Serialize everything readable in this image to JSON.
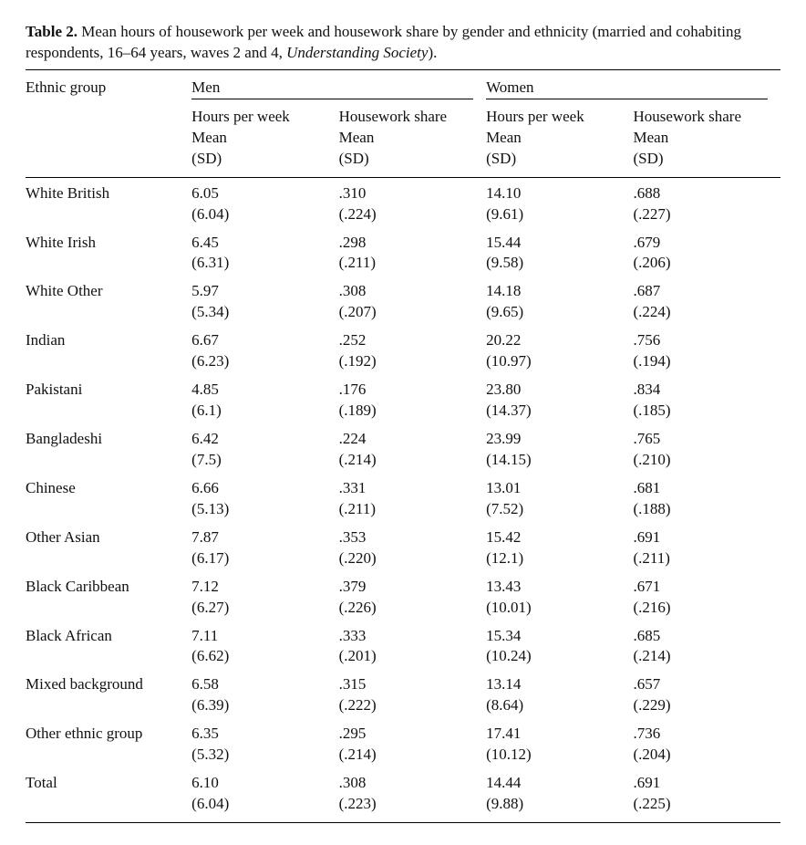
{
  "caption": {
    "label": "Table 2.",
    "text_a": "Mean hours of housework per week and housework share by gender and ethnicity (married and cohabiting respondents, 16–64 years, waves 2 and 4, ",
    "italic": "Understanding Society",
    "text_b": ")."
  },
  "columns": {
    "ethnic": "Ethnic group",
    "gender_men": "Men",
    "gender_women": "Women",
    "sub_hours_l1": "Hours per week",
    "sub_hours_l2": "Mean",
    "sub_hours_l3": "(SD)",
    "sub_share_l1": "Housework share",
    "sub_share_l2": "Mean",
    "sub_share_l3": "(SD)"
  },
  "rows": [
    {
      "name": "White British",
      "m_h": "6.05",
      "m_h_sd": "(6.04)",
      "m_s": ".310",
      "m_s_sd": "(.224)",
      "w_h": "14.10",
      "w_h_sd": "(9.61)",
      "w_s": ".688",
      "w_s_sd": "(.227)"
    },
    {
      "name": "White Irish",
      "m_h": "6.45",
      "m_h_sd": "(6.31)",
      "m_s": ".298",
      "m_s_sd": "(.211)",
      "w_h": "15.44",
      "w_h_sd": "(9.58)",
      "w_s": ".679",
      "w_s_sd": "(.206)"
    },
    {
      "name": "White Other",
      "m_h": "5.97",
      "m_h_sd": "(5.34)",
      "m_s": ".308",
      "m_s_sd": "(.207)",
      "w_h": "14.18",
      "w_h_sd": "(9.65)",
      "w_s": ".687",
      "w_s_sd": "(.224)"
    },
    {
      "name": "Indian",
      "m_h": "6.67",
      "m_h_sd": "(6.23)",
      "m_s": ".252",
      "m_s_sd": "(.192)",
      "w_h": "20.22",
      "w_h_sd": "(10.97)",
      "w_s": ".756",
      "w_s_sd": "(.194)"
    },
    {
      "name": "Pakistani",
      "m_h": "4.85",
      "m_h_sd": "(6.1)",
      "m_s": ".176",
      "m_s_sd": "(.189)",
      "w_h": "23.80",
      "w_h_sd": "(14.37)",
      "w_s": ".834",
      "w_s_sd": "(.185)"
    },
    {
      "name": "Bangladeshi",
      "m_h": "6.42",
      "m_h_sd": "(7.5)",
      "m_s": ".224",
      "m_s_sd": "(.214)",
      "w_h": "23.99",
      "w_h_sd": "(14.15)",
      "w_s": ".765",
      "w_s_sd": "(.210)"
    },
    {
      "name": "Chinese",
      "m_h": "6.66",
      "m_h_sd": "(5.13)",
      "m_s": ".331",
      "m_s_sd": "(.211)",
      "w_h": "13.01",
      "w_h_sd": "(7.52)",
      "w_s": ".681",
      "w_s_sd": "(.188)"
    },
    {
      "name": "Other Asian",
      "m_h": "7.87",
      "m_h_sd": "(6.17)",
      "m_s": ".353",
      "m_s_sd": "(.220)",
      "w_h": "15.42",
      "w_h_sd": "(12.1)",
      "w_s": ".691",
      "w_s_sd": "(.211)"
    },
    {
      "name": "Black Caribbean",
      "m_h": "7.12",
      "m_h_sd": "(6.27)",
      "m_s": ".379",
      "m_s_sd": "(.226)",
      "w_h": "13.43",
      "w_h_sd": "(10.01)",
      "w_s": ".671",
      "w_s_sd": "(.216)"
    },
    {
      "name": "Black African",
      "m_h": "7.11",
      "m_h_sd": "(6.62)",
      "m_s": ".333",
      "m_s_sd": "(.201)",
      "w_h": "15.34",
      "w_h_sd": "(10.24)",
      "w_s": ".685",
      "w_s_sd": "(.214)"
    },
    {
      "name": "Mixed background",
      "m_h": "6.58",
      "m_h_sd": "(6.39)",
      "m_s": ".315",
      "m_s_sd": "(.222)",
      "w_h": "13.14",
      "w_h_sd": "(8.64)",
      "w_s": ".657",
      "w_s_sd": "(.229)"
    },
    {
      "name": "Other ethnic group",
      "m_h": "6.35",
      "m_h_sd": "(5.32)",
      "m_s": ".295",
      "m_s_sd": "(.214)",
      "w_h": "17.41",
      "w_h_sd": "(10.12)",
      "w_s": ".736",
      "w_s_sd": "(.204)"
    },
    {
      "name": "Total",
      "m_h": "6.10",
      "m_h_sd": "(6.04)",
      "m_s": ".308",
      "m_s_sd": "(.223)",
      "w_h": "14.44",
      "w_h_sd": "(9.88)",
      "w_s": ".691",
      "w_s_sd": "(.225)"
    }
  ],
  "style": {
    "font_family": "Times New Roman, serif",
    "font_size_pt": 12,
    "text_color": "#111111",
    "background_color": "#ffffff",
    "rule_color": "#000000"
  }
}
